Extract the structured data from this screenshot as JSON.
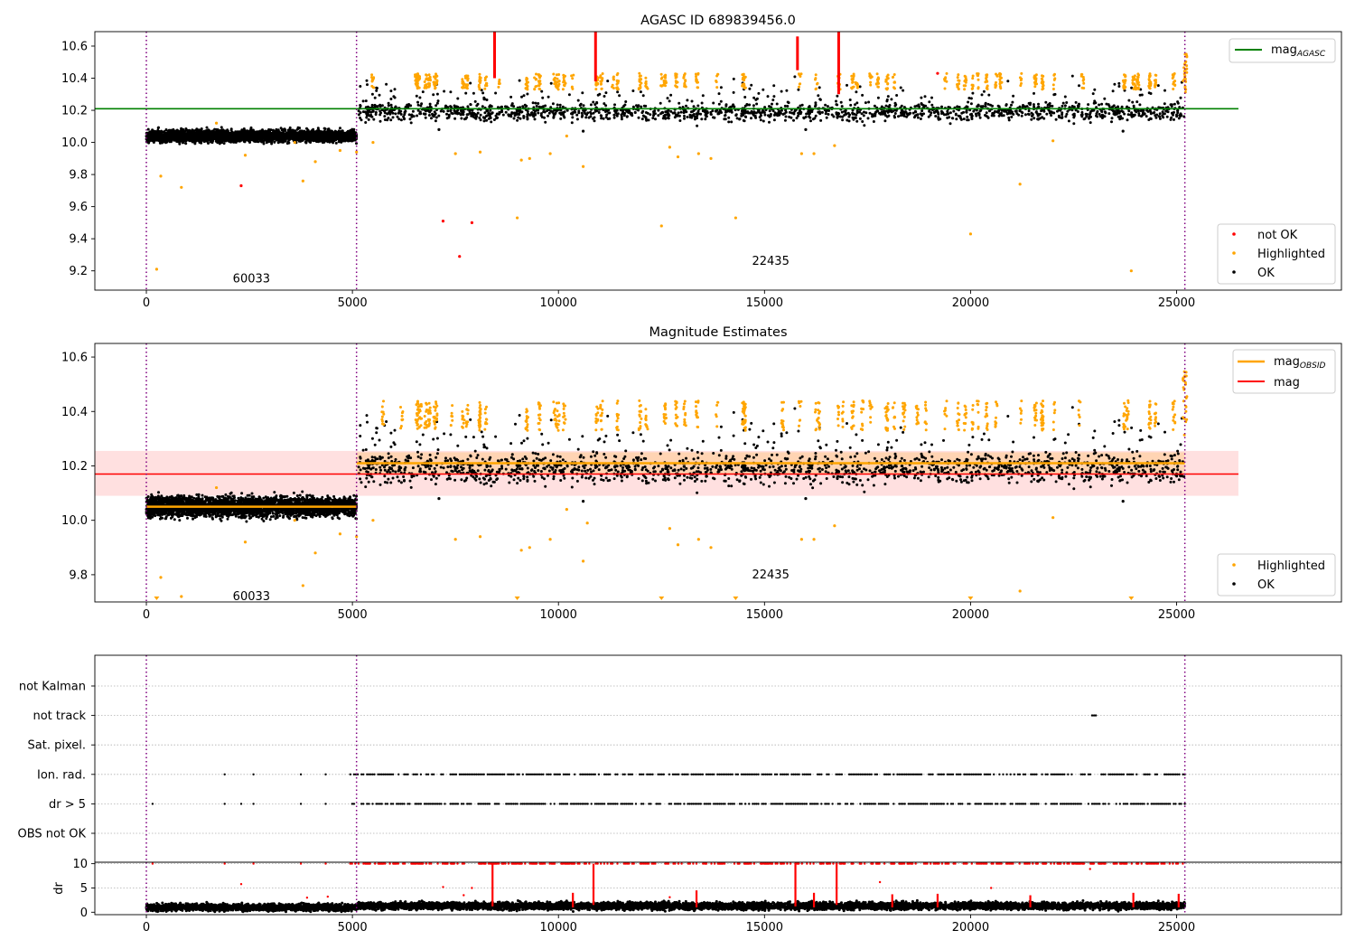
{
  "chart_data": [
    {
      "type": "scatter",
      "title": "AGASC ID 689839456.0",
      "xlim": [
        -1250,
        29000
      ],
      "ylim": [
        9.08,
        10.69
      ],
      "xticks": [
        0,
        5000,
        10000,
        15000,
        20000,
        25000
      ],
      "yticks": [
        9.2,
        9.4,
        9.6,
        9.8,
        10.0,
        10.2,
        10.4,
        10.6
      ],
      "obs_boundaries": [
        0,
        5100,
        25200
      ],
      "obs_labels": [
        {
          "x": 2550,
          "y": 9.15,
          "text": "60033"
        },
        {
          "x": 15150,
          "y": 9.26,
          "text": "22435"
        }
      ],
      "reference_line": {
        "name": "mag$_{AGASC}$",
        "label": "mag",
        "subscript": "AGASC",
        "value": 10.21,
        "x": [
          -1250,
          26500
        ],
        "color": "#008000"
      },
      "segments": [
        {
          "x0": 0,
          "x1": 5100,
          "mean": 10.04,
          "spread": 0.04
        },
        {
          "x0": 5100,
          "x1": 25200,
          "mean": 10.19,
          "spread": 0.05
        }
      ],
      "series": [
        {
          "name": "not OK",
          "color": "#ff0000",
          "outliers": [
            [
              2300,
              9.73
            ],
            [
              7200,
              9.51
            ],
            [
              7600,
              9.29
            ],
            [
              7900,
              9.5
            ],
            [
              19200,
              10.43
            ]
          ],
          "streaks": [
            [
              8450,
              10.4,
              10.69
            ],
            [
              10900,
              10.38,
              10.69
            ],
            [
              15800,
              10.45,
              10.66
            ],
            [
              16800,
              10.3,
              10.69
            ]
          ]
        },
        {
          "name": "Highlighted",
          "color": "#ffa500",
          "outliers": [
            [
              250,
              9.21
            ],
            [
              350,
              9.79
            ],
            [
              850,
              9.72
            ],
            [
              1700,
              10.12
            ],
            [
              2400,
              9.92
            ],
            [
              3600,
              10.0
            ],
            [
              3800,
              9.76
            ],
            [
              4100,
              9.88
            ],
            [
              4700,
              9.95
            ],
            [
              5100,
              9.94
            ],
            [
              5500,
              10.0
            ],
            [
              7500,
              9.93
            ],
            [
              8100,
              9.94
            ],
            [
              9000,
              9.53
            ],
            [
              9100,
              9.89
            ],
            [
              9300,
              9.9
            ],
            [
              9800,
              9.93
            ],
            [
              10200,
              10.04
            ],
            [
              10600,
              9.85
            ],
            [
              12500,
              9.48
            ],
            [
              12700,
              9.97
            ],
            [
              12900,
              9.91
            ],
            [
              13400,
              9.93
            ],
            [
              13700,
              9.9
            ],
            [
              14300,
              9.53
            ],
            [
              15900,
              9.93
            ],
            [
              16200,
              9.93
            ],
            [
              16700,
              9.98
            ],
            [
              20000,
              9.43
            ],
            [
              21200,
              9.74
            ],
            [
              22000,
              10.01
            ],
            [
              23900,
              9.2
            ]
          ]
        },
        {
          "name": "OK",
          "color": "#000000",
          "outliers": [
            [
              23700,
              10.07
            ],
            [
              10600,
              10.07
            ],
            [
              7100,
              10.08
            ],
            [
              16000,
              10.08
            ]
          ]
        }
      ],
      "legend": [
        "mag$_{AGASC}$",
        "not OK",
        "Highlighted",
        "OK"
      ]
    },
    {
      "type": "scatter",
      "title": "Magnitude Estimates",
      "xlim": [
        -1250,
        29000
      ],
      "ylim": [
        9.7,
        10.65
      ],
      "xticks": [
        0,
        5000,
        10000,
        15000,
        20000,
        25000
      ],
      "yticks": [
        9.8,
        10.0,
        10.2,
        10.4,
        10.6
      ],
      "obs_boundaries": [
        0,
        5100,
        25200
      ],
      "obs_labels": [
        {
          "x": 2550,
          "y": 9.72,
          "text": "60033"
        },
        {
          "x": 15150,
          "y": 9.8,
          "text": "22435"
        }
      ],
      "mag_line": {
        "label": "mag",
        "value": 10.17,
        "band": [
          10.09,
          10.255
        ],
        "color": "#ff0000"
      },
      "mag_obsid": [
        {
          "x0": 0,
          "x1": 5100,
          "value": 10.05
        },
        {
          "x0": 5100,
          "x1": 25200,
          "value": 10.21
        }
      ],
      "obsid_band": {
        "x0": 5100,
        "x1": 25200,
        "range": [
          10.17,
          10.25
        ]
      },
      "series": [
        {
          "name": "Highlighted",
          "color": "#ffa500",
          "outliers": [
            [
              350,
              9.79
            ],
            [
              850,
              9.72
            ],
            [
              1700,
              10.12
            ],
            [
              2400,
              9.92
            ],
            [
              3600,
              10.0
            ],
            [
              3800,
              9.76
            ],
            [
              4100,
              9.88
            ],
            [
              4700,
              9.95
            ],
            [
              5100,
              9.94
            ],
            [
              5500,
              10.0
            ],
            [
              7500,
              9.93
            ],
            [
              8100,
              9.94
            ],
            [
              9100,
              9.89
            ],
            [
              9300,
              9.9
            ],
            [
              9800,
              9.93
            ],
            [
              10200,
              10.04
            ],
            [
              10600,
              9.85
            ],
            [
              10700,
              9.99
            ],
            [
              12700,
              9.97
            ],
            [
              12900,
              9.91
            ],
            [
              13400,
              9.93
            ],
            [
              13700,
              9.9
            ],
            [
              15900,
              9.93
            ],
            [
              16200,
              9.93
            ],
            [
              16700,
              9.98
            ],
            [
              21200,
              9.74
            ],
            [
              22000,
              10.01
            ]
          ],
          "clipped_below": [
            250,
            9000,
            12500,
            14300,
            20000,
            23900
          ]
        },
        {
          "name": "OK",
          "color": "#000000",
          "outliers": [
            [
              23700,
              10.07
            ],
            [
              10600,
              10.07
            ],
            [
              7100,
              10.08
            ],
            [
              16000,
              10.08
            ]
          ]
        }
      ],
      "legend": [
        "mag$_{OBSID}$",
        "mag",
        "Highlighted",
        "OK"
      ]
    },
    {
      "type": "scatter",
      "title": "",
      "xlim": [
        -1250,
        29000
      ],
      "categories": [
        "not Kalman",
        "not track",
        "Sat. pixel.",
        "Ion. rad.",
        "dr > 5",
        "OBS not OK"
      ],
      "flag_events": {
        "not track": [
          [
            22950,
            23050
          ]
        ],
        "Ion. rad.": [
          [
            1900,
            1900
          ],
          [
            2600,
            2600
          ],
          [
            3750,
            3750
          ],
          [
            4350,
            4350
          ],
          [
            4950,
            25200
          ]
        ],
        "dr > 5": [
          [
            150,
            150
          ],
          [
            1900,
            1900
          ],
          [
            2300,
            2300
          ],
          [
            2600,
            2600
          ],
          [
            3750,
            3750
          ],
          [
            4350,
            4350
          ],
          [
            4950,
            25200
          ]
        ]
      }
    },
    {
      "type": "scatter",
      "xlim": [
        -1250,
        29000
      ],
      "ylim": [
        -0.5,
        10.3
      ],
      "ylabel": "dr",
      "yticks": [
        0,
        5,
        10
      ],
      "xticks": [
        0,
        5000,
        10000,
        15000,
        20000,
        25000
      ],
      "baseline": {
        "mean": 1.0,
        "spread": 0.6
      },
      "capped_value": 10,
      "spikes": [
        [
          8400,
          1.2,
          10
        ],
        [
          10850,
          1.5,
          10
        ],
        [
          15750,
          1.2,
          10
        ],
        [
          16750,
          1.5,
          10
        ],
        [
          10350,
          1.0,
          4.0
        ],
        [
          13350,
          1.0,
          4.5
        ],
        [
          16200,
          1.0,
          4.0
        ],
        [
          18100,
          1.0,
          3.7
        ],
        [
          19200,
          1.0,
          3.8
        ],
        [
          21450,
          1.0,
          3.5
        ],
        [
          23950,
          1.0,
          4.0
        ],
        [
          25050,
          1.0,
          3.8
        ]
      ],
      "scattered": [
        [
          2300,
          5.8
        ],
        [
          3900,
          3.0
        ],
        [
          7200,
          5.2
        ],
        [
          7700,
          3.5
        ],
        [
          7900,
          5.0
        ],
        [
          17800,
          6.2
        ],
        [
          20500,
          5.0
        ],
        [
          22900,
          8.9
        ],
        [
          4400,
          3.2
        ],
        [
          12700,
          3.1
        ]
      ]
    }
  ],
  "labels": {
    "tick_0": "0",
    "tick_5000": "5000",
    "tick_10000": "10000",
    "tick_15000": "15000",
    "tick_20000": "20000",
    "tick_25000": "25000",
    "p1_y_92": "9.2",
    "p1_y_94": "9.4",
    "p1_y_96": "9.6",
    "p1_y_98": "9.8",
    "p1_y_100": "10.0",
    "p1_y_102": "10.2",
    "p1_y_104": "10.4",
    "p1_y_106": "10.6",
    "legend_not_ok": "not OK",
    "legend_highlighted": "Highlighted",
    "legend_ok": "OK",
    "legend_mag": "mag"
  }
}
